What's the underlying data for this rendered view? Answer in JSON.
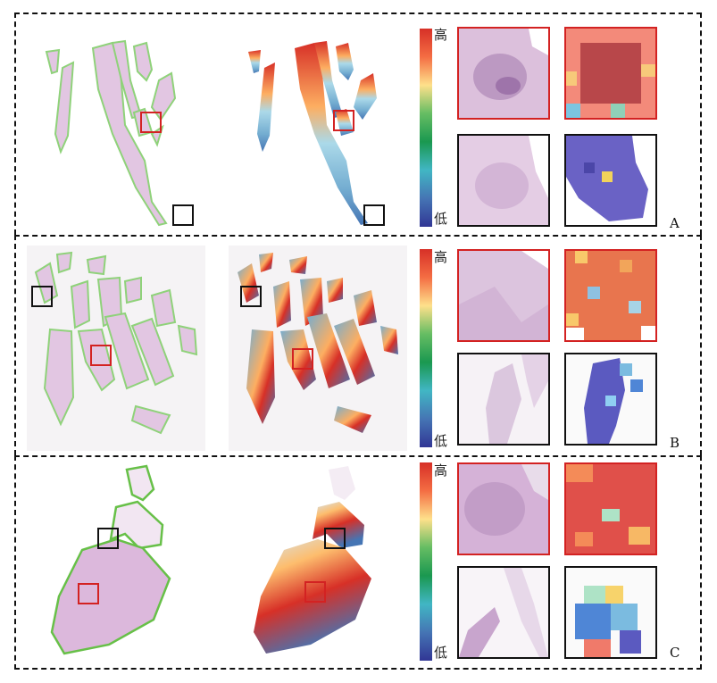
{
  "panels": [
    {
      "id": "A",
      "label": "A"
    },
    {
      "id": "B",
      "label": "B"
    },
    {
      "id": "C",
      "label": "C"
    }
  ],
  "colorbar": {
    "high": "高",
    "low": "低",
    "colors": [
      "#d73027",
      "#f46d43",
      "#fee08b",
      "#66bd63",
      "#1a9850",
      "#41b6c4",
      "#4575b4",
      "#313695"
    ]
  },
  "colors": {
    "roi_red": "#d32222",
    "roi_black": "#111111",
    "contour_green": "#7ed06a",
    "tissue_pink": "#e2c6e2"
  }
}
